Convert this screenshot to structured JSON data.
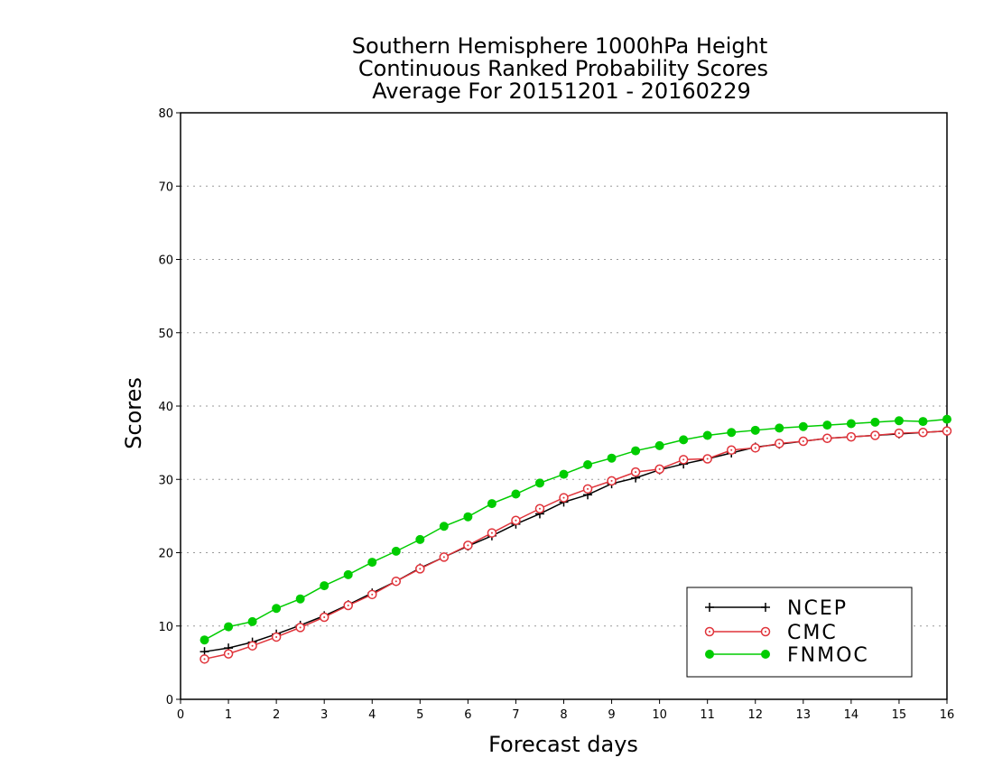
{
  "chart_data": {
    "type": "line",
    "title_lines": [
      "Southern Hemisphere 1000hPa Height",
      "Continuous Ranked Probability Scores",
      "Average For 20151201 - 20160229"
    ],
    "xlabel": "Forecast days",
    "ylabel": "Scores",
    "xlim": [
      0,
      16
    ],
    "ylim": [
      0,
      80
    ],
    "x_ticks": [
      "0",
      "1",
      "2",
      "3",
      "4",
      "5",
      "6",
      "7",
      "8",
      "9",
      "10",
      "11",
      "12",
      "13",
      "14",
      "15",
      "16"
    ],
    "y_ticks": [
      "0",
      "10",
      "20",
      "30",
      "40",
      "50",
      "60",
      "70",
      "80"
    ],
    "grid": "horizontal-dotted",
    "legend_position": "bottom-right",
    "x": [
      0.5,
      1.0,
      1.5,
      2.0,
      2.5,
      3.0,
      3.5,
      4.0,
      4.5,
      5.0,
      5.5,
      6.0,
      6.5,
      7.0,
      7.5,
      8.0,
      8.5,
      9.0,
      9.5,
      10.0,
      10.5,
      11.0,
      11.5,
      12.0,
      12.5,
      13.0,
      13.5,
      14.0,
      14.5,
      15.0,
      15.5,
      16.0
    ],
    "series": [
      {
        "name": "NCEP",
        "color": "#000000",
        "marker": "plus",
        "values": [
          6.5,
          7.0,
          7.8,
          8.9,
          10.1,
          11.4,
          12.9,
          14.5,
          16.1,
          17.9,
          19.4,
          20.9,
          22.3,
          23.9,
          25.3,
          26.9,
          27.9,
          29.4,
          30.2,
          31.3,
          32.1,
          32.8,
          33.6,
          34.4,
          34.8,
          35.2,
          35.6,
          35.8,
          36.0,
          36.2,
          36.4,
          36.6
        ]
      },
      {
        "name": "CMC",
        "color": "#e0333a",
        "marker": "open-circle",
        "values": [
          5.5,
          6.2,
          7.3,
          8.5,
          9.8,
          11.2,
          12.8,
          14.3,
          16.1,
          17.8,
          19.4,
          21.0,
          22.7,
          24.4,
          26.0,
          27.5,
          28.7,
          29.8,
          31.0,
          31.4,
          32.7,
          32.8,
          34.0,
          34.3,
          34.9,
          35.2,
          35.6,
          35.8,
          36.0,
          36.3,
          36.4,
          36.6
        ]
      },
      {
        "name": "FNMOC",
        "color": "#00cc00",
        "marker": "filled-circle",
        "values": [
          8.1,
          9.9,
          10.6,
          12.4,
          13.7,
          15.5,
          17.0,
          18.7,
          20.2,
          21.8,
          23.6,
          24.9,
          26.7,
          28.0,
          29.5,
          30.7,
          32.0,
          32.9,
          33.9,
          34.6,
          35.4,
          36.0,
          36.4,
          36.7,
          37.0,
          37.2,
          37.4,
          37.6,
          37.8,
          38.0,
          37.9,
          38.2
        ]
      }
    ]
  }
}
